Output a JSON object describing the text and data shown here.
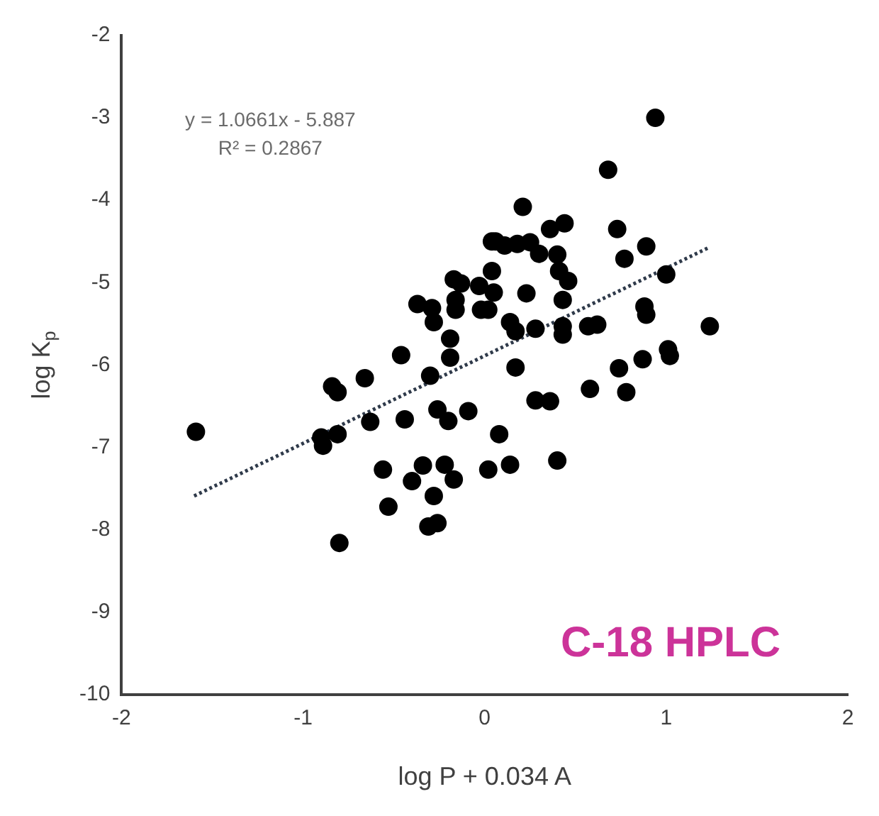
{
  "chart_data": {
    "type": "scatter",
    "xlabel": "log P + 0.034 A",
    "ylabel": "log K$_{p}$",
    "xlim": [
      -2,
      2
    ],
    "ylim": [
      -10,
      -2
    ],
    "xticks": [
      -2,
      -1,
      0,
      1,
      2
    ],
    "yticks": [
      -10,
      -9,
      -8,
      -7,
      -6,
      -5,
      -4,
      -3,
      -2
    ],
    "grid": false,
    "legend": false,
    "marker": "circle",
    "annotations": [
      "y = 1.0661x - 5.887",
      "R² = 0.2867",
      "C-18 HPLC"
    ],
    "series": [
      {
        "color": "#000000",
        "x": [
          -1.59,
          -0.84,
          -0.81,
          -0.66,
          -0.46,
          -0.9,
          -0.89,
          -0.81,
          -0.63,
          -0.44,
          -0.56,
          -0.53,
          -0.8,
          -0.4,
          -0.34,
          -0.28,
          -0.31,
          -0.26,
          -0.22,
          -0.17,
          -0.3,
          -0.26,
          -0.2,
          -0.09,
          -0.19,
          -0.19,
          -0.28,
          -0.37,
          -0.29,
          -0.17,
          -0.13,
          -0.16,
          -0.16,
          -0.03,
          0.04,
          0.04,
          0.02,
          0.02,
          0.94,
          0.68,
          0.21,
          0.36,
          0.44,
          0.06,
          0.11,
          0.18,
          0.25,
          0.3,
          0.4,
          0.41,
          0.46,
          0.73,
          0.89,
          0.77,
          1.0,
          0.05,
          0.23,
          -0.02,
          0.43,
          0.14,
          0.17,
          0.28,
          0.43,
          0.43,
          0.57,
          0.62,
          0.88,
          0.89,
          1.24,
          0.17,
          0.74,
          0.87,
          1.01,
          1.02,
          0.28,
          0.36,
          0.58,
          0.78,
          0.08,
          0.14,
          0.4
        ],
        "values": [
          -6.81,
          -6.26,
          -6.33,
          -6.16,
          -5.88,
          -6.88,
          -6.98,
          -6.84,
          -6.69,
          -6.66,
          -7.27,
          -7.72,
          -8.16,
          -7.41,
          -7.22,
          -7.59,
          -7.96,
          -7.92,
          -7.21,
          -7.39,
          -6.13,
          -6.54,
          -6.68,
          -6.56,
          -5.68,
          -5.91,
          -5.48,
          -5.26,
          -5.31,
          -4.96,
          -5.01,
          -5.21,
          -5.33,
          -5.04,
          -4.5,
          -4.86,
          -5.33,
          -7.27,
          -3.0,
          -3.63,
          -4.08,
          -4.35,
          -4.28,
          -4.5,
          -4.55,
          -4.53,
          -4.51,
          -4.65,
          -4.66,
          -4.86,
          -4.98,
          -4.35,
          -4.56,
          -4.71,
          -4.9,
          -5.12,
          -5.13,
          -5.33,
          -5.21,
          -5.48,
          -5.59,
          -5.56,
          -5.53,
          -5.63,
          -5.53,
          -5.51,
          -5.29,
          -5.39,
          -5.53,
          -6.03,
          -6.04,
          -5.93,
          -5.81,
          -5.89,
          -6.43,
          -6.44,
          -6.29,
          -6.33,
          -6.84,
          -7.21,
          -7.16
        ]
      },
      {
        "type": "line",
        "color": "#2f3a4a",
        "marker": "none",
        "line_style": "dotted",
        "x": [
          -1.6,
          1.23
        ],
        "values": [
          -7.59,
          -4.58
        ]
      }
    ]
  }
}
